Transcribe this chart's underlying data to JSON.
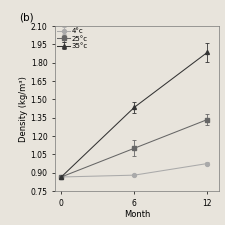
{
  "title": "(b)",
  "xlabel": "Month",
  "ylabel": "Density (kg/m³)",
  "xlim": [
    -0.5,
    13
  ],
  "ylim": [
    0.75,
    2.1
  ],
  "xticks": [
    0,
    6,
    12
  ],
  "yticks": [
    0.75,
    0.9,
    1.05,
    1.2,
    1.35,
    1.5,
    1.65,
    1.8,
    1.95,
    2.1
  ],
  "series": [
    {
      "label": "4°c",
      "x": [
        0,
        6,
        12
      ],
      "y": [
        0.865,
        0.88,
        0.975
      ],
      "yerr": [
        0.005,
        0.01,
        0.015
      ],
      "marker": "o",
      "color": "#aaaaaa",
      "mfc": "#aaaaaa"
    },
    {
      "label": "25°c",
      "x": [
        0,
        6,
        12
      ],
      "y": [
        0.865,
        1.1,
        1.335
      ],
      "yerr": [
        0.005,
        0.065,
        0.045
      ],
      "marker": "s",
      "color": "#666666",
      "mfc": "#666666"
    },
    {
      "label": "35°c",
      "x": [
        0,
        6,
        12
      ],
      "y": [
        0.865,
        1.435,
        1.885
      ],
      "yerr": [
        0.005,
        0.045,
        0.075
      ],
      "marker": "^",
      "color": "#333333",
      "mfc": "#333333"
    }
  ],
  "background_color": "#e8e4dc",
  "plot_bg_color": "#e8e4dc",
  "legend_fontsize": 5.0,
  "axis_fontsize": 6.0,
  "title_fontsize": 7.5,
  "tick_fontsize": 5.5,
  "linewidth": 0.75,
  "markersize": 2.8,
  "capsize": 1.5,
  "elinewidth": 0.6,
  "capthick": 0.6
}
